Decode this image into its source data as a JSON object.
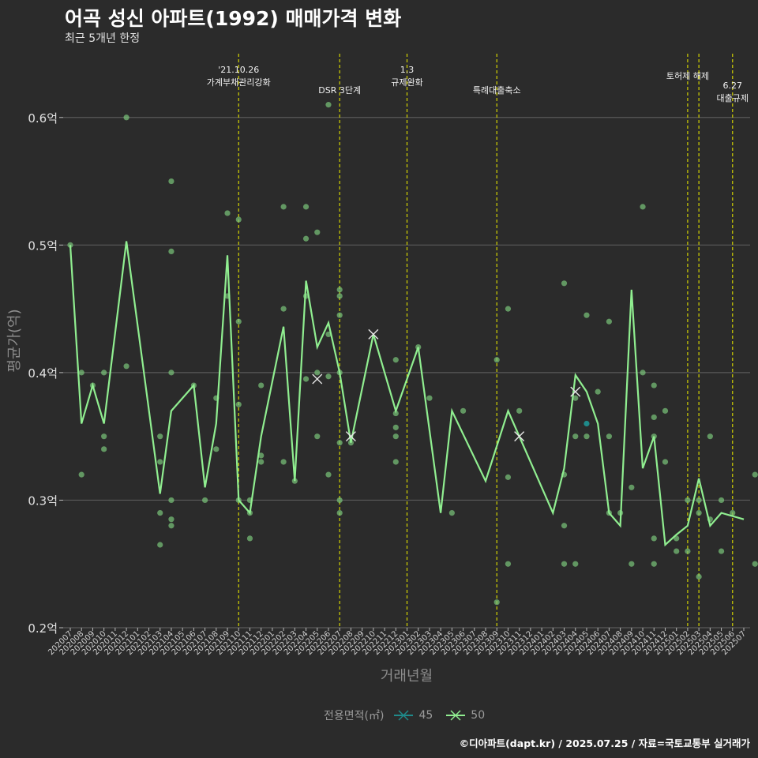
{
  "header": {
    "title": "어곡 성신 아파트(1992) 매매가격 변화",
    "subtitle": "최근 5개년 한정"
  },
  "caption": "©디아파트(dapt.kr) / 2025.07.25 / 자료=국토교통부 실거래가",
  "legend": {
    "title": "전용면적(㎡)",
    "items": [
      {
        "label": "45",
        "color": "#1f8a8a"
      },
      {
        "label": "50",
        "color": "#90ee90"
      }
    ]
  },
  "colors": {
    "background": "#2b2b2b",
    "grid": "#5a5a5a",
    "event_line": "#d4d400",
    "scatter": "#7bc67b"
  },
  "chart_data": {
    "type": "line",
    "xlabel": "거래년월",
    "ylabel": "평균가(억)",
    "ylim": [
      0.2,
      0.65
    ],
    "yticks": [
      "0.2억",
      "0.3억",
      "0.4억",
      "0.5억",
      "0.6억"
    ],
    "ytick_values": [
      0.2,
      0.3,
      0.4,
      0.5,
      0.6
    ],
    "grid": true,
    "legend_position": "bottom",
    "x": [
      "202007",
      "202008",
      "202009",
      "202010",
      "202011",
      "202012",
      "202101",
      "202102",
      "202103",
      "202104",
      "202105",
      "202106",
      "202107",
      "202108",
      "202109",
      "202110",
      "202111",
      "202112",
      "202201",
      "202202",
      "202203",
      "202204",
      "202205",
      "202206",
      "202207",
      "202208",
      "202209",
      "202210",
      "202211",
      "202212",
      "202301",
      "202302",
      "202303",
      "202304",
      "202305",
      "202306",
      "202307",
      "202308",
      "202309",
      "202310",
      "202311",
      "202312",
      "202401",
      "202402",
      "202403",
      "202404",
      "202405",
      "202406",
      "202407",
      "202408",
      "202409",
      "202410",
      "202411",
      "202412",
      "202501",
      "202502",
      "202503",
      "202504",
      "202505",
      "202506",
      "202507"
    ],
    "series": [
      {
        "name": "50",
        "color": "#90ee90",
        "points": [
          [
            "202007",
            0.5
          ],
          [
            "202008",
            0.36
          ],
          [
            "202009",
            0.39
          ],
          [
            "202010",
            0.36
          ],
          [
            "202012",
            0.503
          ],
          [
            "202103",
            0.305
          ],
          [
            "202104",
            0.37
          ],
          [
            "202106",
            0.39
          ],
          [
            "202107",
            0.31
          ],
          [
            "202108",
            0.36
          ],
          [
            "202109",
            0.492
          ],
          [
            "202110",
            0.3
          ],
          [
            "202111",
            0.29
          ],
          [
            "202112",
            0.35
          ],
          [
            "202202",
            0.436
          ],
          [
            "202203",
            0.315
          ],
          [
            "202204",
            0.472
          ],
          [
            "202205",
            0.42
          ],
          [
            "202206",
            0.439
          ],
          [
            "202207",
            0.4
          ],
          [
            "202208",
            0.345
          ],
          [
            "202210",
            0.43
          ],
          [
            "202212",
            0.37
          ],
          [
            "202302",
            0.42
          ],
          [
            "202304",
            0.29
          ],
          [
            "202305",
            0.37
          ],
          [
            "202308",
            0.315
          ],
          [
            "202310",
            0.37
          ],
          [
            "202402",
            0.29
          ],
          [
            "202403",
            0.325
          ],
          [
            "202404",
            0.398
          ],
          [
            "202405",
            0.385
          ],
          [
            "202406",
            0.36
          ],
          [
            "202407",
            0.29
          ],
          [
            "202408",
            0.28
          ],
          [
            "202409",
            0.465
          ],
          [
            "202410",
            0.325
          ],
          [
            "202411",
            0.35
          ],
          [
            "202412",
            0.265
          ],
          [
            "202501",
            0.273
          ],
          [
            "202502",
            0.28
          ],
          [
            "202503",
            0.317
          ],
          [
            "202504",
            0.28
          ],
          [
            "202505",
            0.29
          ],
          [
            "202507",
            0.285
          ]
        ]
      },
      {
        "name": "45",
        "color": "#1f8a8a",
        "points": [
          [
            "202405",
            0.36
          ]
        ]
      }
    ],
    "markers": [
      {
        "x": "202205",
        "y": 0.395
      },
      {
        "x": "202208",
        "y": 0.35
      },
      {
        "x": "202210",
        "y": 0.43
      },
      {
        "x": "202311",
        "y": 0.35
      },
      {
        "x": "202404",
        "y": 0.385
      }
    ],
    "scatter": [
      [
        0,
        0.5
      ],
      [
        1,
        0.4
      ],
      [
        1,
        0.32
      ],
      [
        2,
        0.39
      ],
      [
        3,
        0.4
      ],
      [
        3,
        0.35
      ],
      [
        3,
        0.34
      ],
      [
        5,
        0.6
      ],
      [
        5,
        0.405
      ],
      [
        8,
        0.35
      ],
      [
        8,
        0.33
      ],
      [
        8,
        0.29
      ],
      [
        8,
        0.265
      ],
      [
        9,
        0.55
      ],
      [
        9,
        0.495
      ],
      [
        9,
        0.4
      ],
      [
        9,
        0.3
      ],
      [
        9,
        0.285
      ],
      [
        9,
        0.28
      ],
      [
        11,
        0.39
      ],
      [
        12,
        0.3
      ],
      [
        13,
        0.38
      ],
      [
        13,
        0.34
      ],
      [
        14,
        0.525
      ],
      [
        14,
        0.46
      ],
      [
        15,
        0.52
      ],
      [
        15,
        0.44
      ],
      [
        15,
        0.375
      ],
      [
        15,
        0.3
      ],
      [
        16,
        0.3
      ],
      [
        16,
        0.29
      ],
      [
        16,
        0.27
      ],
      [
        17,
        0.39
      ],
      [
        17,
        0.335
      ],
      [
        17,
        0.33
      ],
      [
        19,
        0.53
      ],
      [
        19,
        0.45
      ],
      [
        19,
        0.33
      ],
      [
        20,
        0.315
      ],
      [
        21,
        0.53
      ],
      [
        21,
        0.505
      ],
      [
        21,
        0.46
      ],
      [
        21,
        0.395
      ],
      [
        22,
        0.51
      ],
      [
        22,
        0.4
      ],
      [
        22,
        0.35
      ],
      [
        23,
        0.61
      ],
      [
        23,
        0.43
      ],
      [
        23,
        0.397
      ],
      [
        23,
        0.32
      ],
      [
        24,
        0.465
      ],
      [
        24,
        0.46
      ],
      [
        24,
        0.445
      ],
      [
        24,
        0.4
      ],
      [
        24,
        0.345
      ],
      [
        24,
        0.3
      ],
      [
        24,
        0.29
      ],
      [
        25,
        0.345
      ],
      [
        29,
        0.41
      ],
      [
        29,
        0.368
      ],
      [
        29,
        0.357
      ],
      [
        29,
        0.35
      ],
      [
        29,
        0.33
      ],
      [
        31,
        0.42
      ],
      [
        32,
        0.38
      ],
      [
        34,
        0.29
      ],
      [
        35,
        0.37
      ],
      [
        38,
        0.41
      ],
      [
        38,
        0.22
      ],
      [
        39,
        0.45
      ],
      [
        39,
        0.318
      ],
      [
        39,
        0.25
      ],
      [
        40,
        0.37
      ],
      [
        44,
        0.47
      ],
      [
        44,
        0.32
      ],
      [
        44,
        0.28
      ],
      [
        44,
        0.25
      ],
      [
        45,
        0.38
      ],
      [
        45,
        0.35
      ],
      [
        45,
        0.25
      ],
      [
        46,
        0.445
      ],
      [
        46,
        0.35
      ],
      [
        47,
        0.385
      ],
      [
        48,
        0.44
      ],
      [
        48,
        0.35
      ],
      [
        48,
        0.29
      ],
      [
        49,
        0.29
      ],
      [
        50,
        0.31
      ],
      [
        50,
        0.25
      ],
      [
        51,
        0.53
      ],
      [
        51,
        0.4
      ],
      [
        52,
        0.39
      ],
      [
        52,
        0.365
      ],
      [
        52,
        0.35
      ],
      [
        52,
        0.27
      ],
      [
        52,
        0.25
      ],
      [
        53,
        0.37
      ],
      [
        53,
        0.33
      ],
      [
        54,
        0.27
      ],
      [
        54,
        0.26
      ],
      [
        55,
        0.3
      ],
      [
        55,
        0.26
      ],
      [
        56,
        0.3
      ],
      [
        56,
        0.29
      ],
      [
        56,
        0.24
      ],
      [
        57,
        0.35
      ],
      [
        57,
        0.285
      ],
      [
        58,
        0.3
      ],
      [
        58,
        0.26
      ],
      [
        59,
        0.29
      ],
      [
        61,
        0.32
      ],
      [
        61,
        0.25
      ]
    ],
    "events": [
      {
        "x": "202110",
        "label": "'21.10.26\n가계부채관리강화"
      },
      {
        "x": "202207",
        "label": "DSR 3단계"
      },
      {
        "x": "202301",
        "label": "1.3\n규제완화"
      },
      {
        "x": "202309",
        "label": "특례대출축소"
      },
      {
        "x": "202502",
        "label": "토허제 해제"
      },
      {
        "x": "202503",
        "label": ""
      },
      {
        "x": "202506",
        "label": "6.27\n대출규제"
      }
    ]
  }
}
